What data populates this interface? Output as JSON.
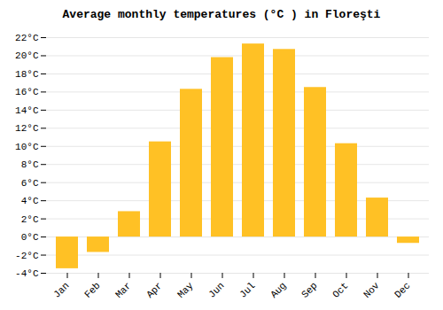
{
  "chart_data": {
    "type": "bar",
    "title": "Average monthly temperatures (°C ) in Floreşti",
    "categories": [
      "Jan",
      "Feb",
      "Mar",
      "Apr",
      "May",
      "Jun",
      "Jul",
      "Aug",
      "Sep",
      "Oct",
      "Nov",
      "Dec"
    ],
    "values": [
      -3.5,
      -1.7,
      2.8,
      10.5,
      16.3,
      19.8,
      21.3,
      20.7,
      16.5,
      10.3,
      4.3,
      -0.7
    ],
    "color": "#FFC125",
    "ylim": [
      -4,
      22
    ],
    "yticks": [
      {
        "value": -4,
        "label": "-4°C"
      },
      {
        "value": -2,
        "label": "-2°C"
      },
      {
        "value": 0,
        "label": "0°C"
      },
      {
        "value": 2,
        "label": "2°C"
      },
      {
        "value": 4,
        "label": "4°C"
      },
      {
        "value": 6,
        "label": "6°C"
      },
      {
        "value": 8,
        "label": "8°C"
      },
      {
        "value": 10,
        "label": "10°C"
      },
      {
        "value": 12,
        "label": "12°C"
      },
      {
        "value": 14,
        "label": "14°C"
      },
      {
        "value": 16,
        "label": "16°C"
      },
      {
        "value": 18,
        "label": "18°C"
      },
      {
        "value": 20,
        "label": "20°C"
      },
      {
        "value": 22,
        "label": "22°C"
      }
    ],
    "grid": true
  }
}
